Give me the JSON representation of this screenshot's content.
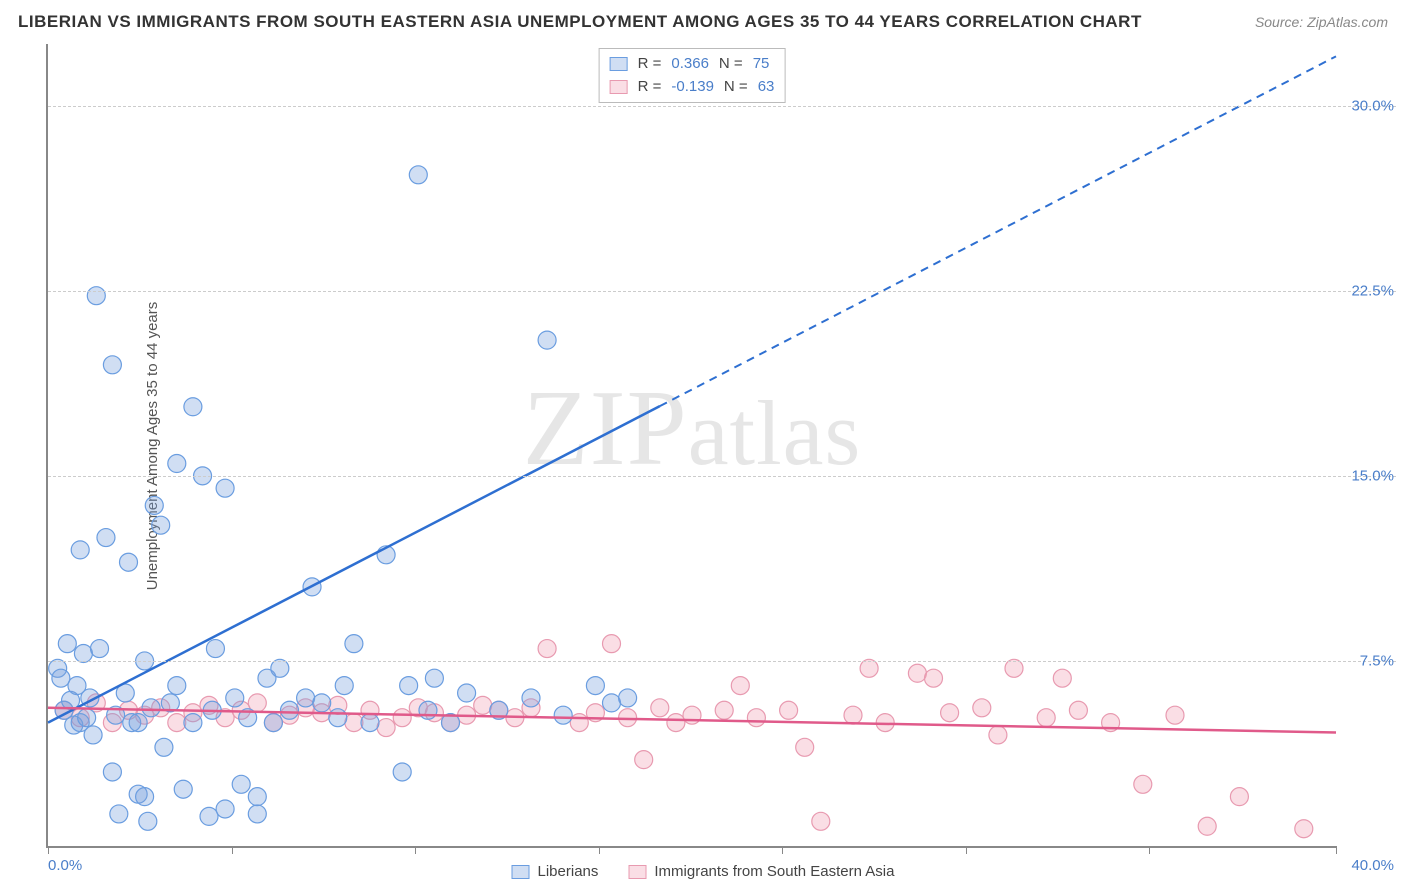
{
  "title": "LIBERIAN VS IMMIGRANTS FROM SOUTH EASTERN ASIA UNEMPLOYMENT AMONG AGES 35 TO 44 YEARS CORRELATION CHART",
  "source": "Source: ZipAtlas.com",
  "ylabel": "Unemployment Among Ages 35 to 44 years",
  "watermark": "ZIPatlas",
  "legend_top": {
    "series1": {
      "r_label": "R =",
      "r_value": "0.366",
      "n_label": "N =",
      "n_value": "75"
    },
    "series2": {
      "r_label": "R =",
      "r_value": "-0.139",
      "n_label": "N =",
      "n_value": "63"
    }
  },
  "legend_bottom": {
    "series1": "Liberians",
    "series2": "Immigrants from South Eastern Asia"
  },
  "axes": {
    "xlim": [
      0,
      40
    ],
    "ylim": [
      0,
      32.5
    ],
    "x_origin_label": "0.0%",
    "x_max_label": "40.0%",
    "y_ticks": [
      7.5,
      15.0,
      22.5,
      30.0
    ],
    "y_tick_labels": [
      "7.5%",
      "15.0%",
      "22.5%",
      "30.0%"
    ],
    "x_tick_positions": [
      0,
      5.7,
      11.4,
      17.1,
      22.8,
      28.5,
      34.2,
      40
    ]
  },
  "colors": {
    "blue_fill": "rgba(120,160,220,0.35)",
    "blue_stroke": "#6a9de0",
    "pink_fill": "rgba(240,160,180,0.35)",
    "pink_stroke": "#e89ab0",
    "blue_line": "#2e6fd1",
    "pink_line": "#e05a8a",
    "grid": "#cccccc",
    "axis": "#888888",
    "tick_text": "#4a7ec9"
  },
  "marker_radius": 9,
  "trend_lines": {
    "blue": {
      "x1": 0,
      "y1": 5.0,
      "x2": 40,
      "y2": 32.0,
      "solid_until_x": 19
    },
    "pink": {
      "x1": 0,
      "y1": 5.6,
      "x2": 40,
      "y2": 4.6
    }
  },
  "series": {
    "blue": [
      [
        0.3,
        7.2
      ],
      [
        0.4,
        6.8
      ],
      [
        0.5,
        5.5
      ],
      [
        0.6,
        8.2
      ],
      [
        0.7,
        5.9
      ],
      [
        0.8,
        4.9
      ],
      [
        0.9,
        6.5
      ],
      [
        1.0,
        5.0
      ],
      [
        1.1,
        7.8
      ],
      [
        1.2,
        5.2
      ],
      [
        1.3,
        6.0
      ],
      [
        1.4,
        4.5
      ],
      [
        1.5,
        22.3
      ],
      [
        1.6,
        8.0
      ],
      [
        1.8,
        12.5
      ],
      [
        2.0,
        19.5
      ],
      [
        2.0,
        3.0
      ],
      [
        2.1,
        5.3
      ],
      [
        2.2,
        1.3
      ],
      [
        2.4,
        6.2
      ],
      [
        2.5,
        11.5
      ],
      [
        2.6,
        5.0
      ],
      [
        2.8,
        2.1
      ],
      [
        3.0,
        7.5
      ],
      [
        3.1,
        1.0
      ],
      [
        3.2,
        5.6
      ],
      [
        3.5,
        13.0
      ],
      [
        3.6,
        4.0
      ],
      [
        3.8,
        5.8
      ],
      [
        4.0,
        6.5
      ],
      [
        4.2,
        2.3
      ],
      [
        4.5,
        17.8
      ],
      [
        4.8,
        15.0
      ],
      [
        5.0,
        1.2
      ],
      [
        5.1,
        5.5
      ],
      [
        5.2,
        8.0
      ],
      [
        5.5,
        14.5
      ],
      [
        5.8,
        6.0
      ],
      [
        6.0,
        2.5
      ],
      [
        6.2,
        5.2
      ],
      [
        6.5,
        1.3
      ],
      [
        6.8,
        6.8
      ],
      [
        7.0,
        5.0
      ],
      [
        7.2,
        7.2
      ],
      [
        7.5,
        5.5
      ],
      [
        8.0,
        6.0
      ],
      [
        8.2,
        10.5
      ],
      [
        8.5,
        5.8
      ],
      [
        9.0,
        5.2
      ],
      [
        9.2,
        6.5
      ],
      [
        9.5,
        8.2
      ],
      [
        10.0,
        5.0
      ],
      [
        10.5,
        11.8
      ],
      [
        11.0,
        3.0
      ],
      [
        11.2,
        6.5
      ],
      [
        11.5,
        27.2
      ],
      [
        11.8,
        5.5
      ],
      [
        12.0,
        6.8
      ],
      [
        12.5,
        5.0
      ],
      [
        13.0,
        6.2
      ],
      [
        14.0,
        5.5
      ],
      [
        15.0,
        6.0
      ],
      [
        15.5,
        20.5
      ],
      [
        16.0,
        5.3
      ],
      [
        17.0,
        6.5
      ],
      [
        17.5,
        5.8
      ],
      [
        18.0,
        6.0
      ],
      [
        4.0,
        15.5
      ],
      [
        3.3,
        13.8
      ],
      [
        5.5,
        1.5
      ],
      [
        2.8,
        5.0
      ],
      [
        1.0,
        12.0
      ],
      [
        3.0,
        2.0
      ],
      [
        6.5,
        2.0
      ],
      [
        4.5,
        5.0
      ]
    ],
    "pink": [
      [
        0.5,
        5.5
      ],
      [
        1.0,
        5.2
      ],
      [
        1.5,
        5.8
      ],
      [
        2.0,
        5.0
      ],
      [
        2.5,
        5.5
      ],
      [
        3.0,
        5.3
      ],
      [
        3.5,
        5.6
      ],
      [
        4.0,
        5.0
      ],
      [
        4.5,
        5.4
      ],
      [
        5.0,
        5.7
      ],
      [
        5.5,
        5.2
      ],
      [
        6.0,
        5.5
      ],
      [
        6.5,
        5.8
      ],
      [
        7.0,
        5.0
      ],
      [
        7.5,
        5.3
      ],
      [
        8.0,
        5.6
      ],
      [
        8.5,
        5.4
      ],
      [
        9.0,
        5.7
      ],
      [
        9.5,
        5.0
      ],
      [
        10.0,
        5.5
      ],
      [
        10.5,
        4.8
      ],
      [
        11.0,
        5.2
      ],
      [
        11.5,
        5.6
      ],
      [
        12.0,
        5.4
      ],
      [
        12.5,
        5.0
      ],
      [
        13.0,
        5.3
      ],
      [
        13.5,
        5.7
      ],
      [
        14.0,
        5.5
      ],
      [
        14.5,
        5.2
      ],
      [
        15.0,
        5.6
      ],
      [
        15.5,
        8.0
      ],
      [
        16.5,
        5.0
      ],
      [
        17.0,
        5.4
      ],
      [
        17.5,
        8.2
      ],
      [
        18.0,
        5.2
      ],
      [
        18.5,
        3.5
      ],
      [
        19.0,
        5.6
      ],
      [
        19.5,
        5.0
      ],
      [
        20.0,
        5.3
      ],
      [
        21.0,
        5.5
      ],
      [
        21.5,
        6.5
      ],
      [
        22.0,
        5.2
      ],
      [
        23.0,
        5.5
      ],
      [
        23.5,
        4.0
      ],
      [
        24.0,
        1.0
      ],
      [
        25.0,
        5.3
      ],
      [
        25.5,
        7.2
      ],
      [
        26.0,
        5.0
      ],
      [
        27.0,
        7.0
      ],
      [
        27.5,
        6.8
      ],
      [
        28.0,
        5.4
      ],
      [
        29.0,
        5.6
      ],
      [
        29.5,
        4.5
      ],
      [
        30.0,
        7.2
      ],
      [
        31.0,
        5.2
      ],
      [
        31.5,
        6.8
      ],
      [
        32.0,
        5.5
      ],
      [
        33.0,
        5.0
      ],
      [
        34.0,
        2.5
      ],
      [
        35.0,
        5.3
      ],
      [
        36.0,
        0.8
      ],
      [
        37.0,
        2.0
      ],
      [
        39.0,
        0.7
      ]
    ]
  }
}
